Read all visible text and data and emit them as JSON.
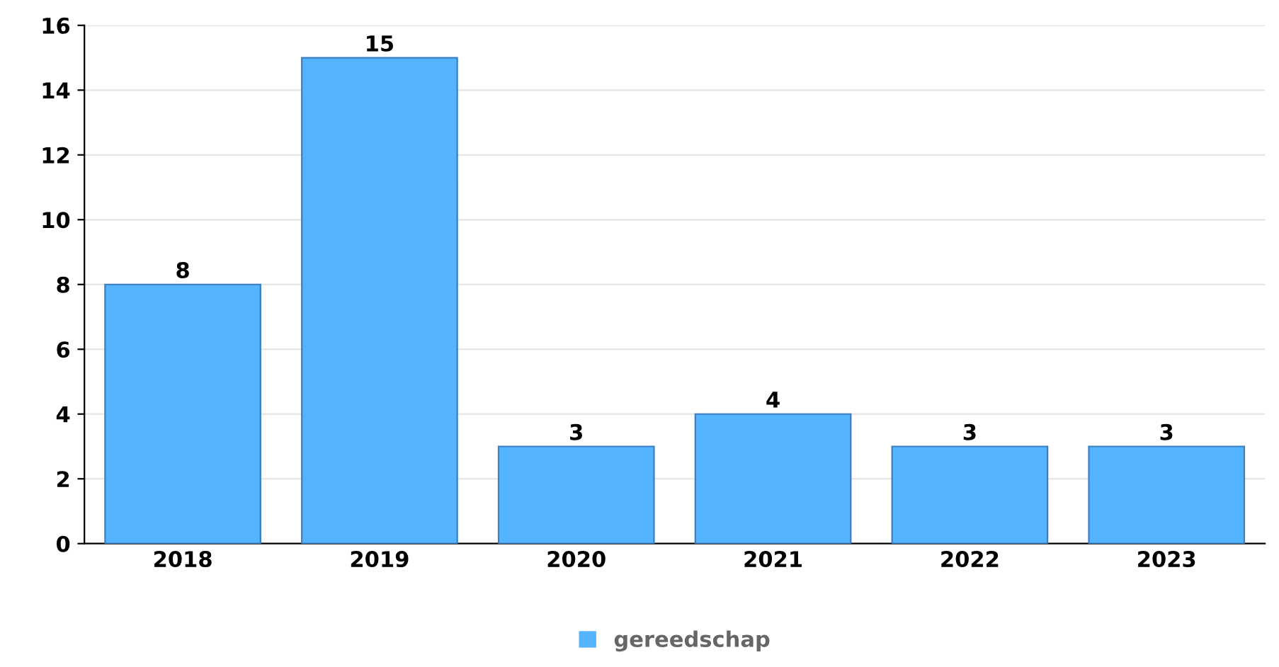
{
  "chart_data": {
    "type": "bar",
    "categories": [
      "2018",
      "2019",
      "2020",
      "2021",
      "2022",
      "2023"
    ],
    "series": [
      {
        "name": "gereedschap",
        "color": "#55b4ff",
        "values": [
          8,
          15,
          3,
          4,
          3,
          3
        ]
      }
    ],
    "ylim": [
      0,
      16
    ],
    "yticks": [
      0,
      2,
      4,
      6,
      8,
      10,
      12,
      14,
      16
    ],
    "grid": "y",
    "legend": "bottom",
    "data_labels": true
  }
}
